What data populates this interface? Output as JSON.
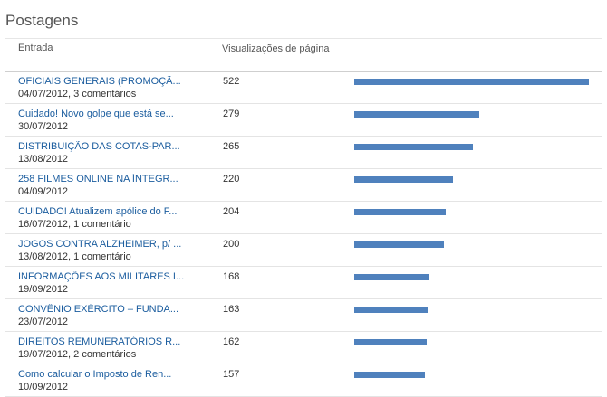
{
  "panel": {
    "title": "Postagens"
  },
  "table": {
    "columns": {
      "entry": "Entrada",
      "views": "Visualizações de página"
    },
    "max_views": 522,
    "rows": [
      {
        "title": "OFICIAIS GENERAIS (PROMOÇÃ...",
        "meta": "04/07/2012, 3 comentários",
        "views": 522
      },
      {
        "title": "Cuidado! Novo golpe que está se...",
        "meta": "30/07/2012",
        "views": 279
      },
      {
        "title": "DISTRIBUIÇÃO DAS COTAS-PAR...",
        "meta": "13/08/2012",
        "views": 265
      },
      {
        "title": "258 FILMES ONLINE NA ÍNTEGR...",
        "meta": "04/09/2012",
        "views": 220
      },
      {
        "title": "CUIDADO! Atualizem apólice do F...",
        "meta": "16/07/2012, 1 comentário",
        "views": 204
      },
      {
        "title": "JOGOS CONTRA ALZHEIMER, p/ ...",
        "meta": "13/08/2012, 1 comentário",
        "views": 200
      },
      {
        "title": "INFORMAÇÕES AOS MILITARES I...",
        "meta": "19/09/2012",
        "views": 168
      },
      {
        "title": "CONVÊNIO EXÉRCITO – FUNDA...",
        "meta": "23/07/2012",
        "views": 163
      },
      {
        "title": "DIREITOS REMUNERATÓRIOS R...",
        "meta": "19/07/2012, 2 comentários",
        "views": 162
      },
      {
        "title": "Como calcular o Imposto de Ren...",
        "meta": "10/09/2012",
        "views": 157
      }
    ]
  },
  "colors": {
    "bar": "#4f81bd",
    "link": "#1a5c9e"
  }
}
